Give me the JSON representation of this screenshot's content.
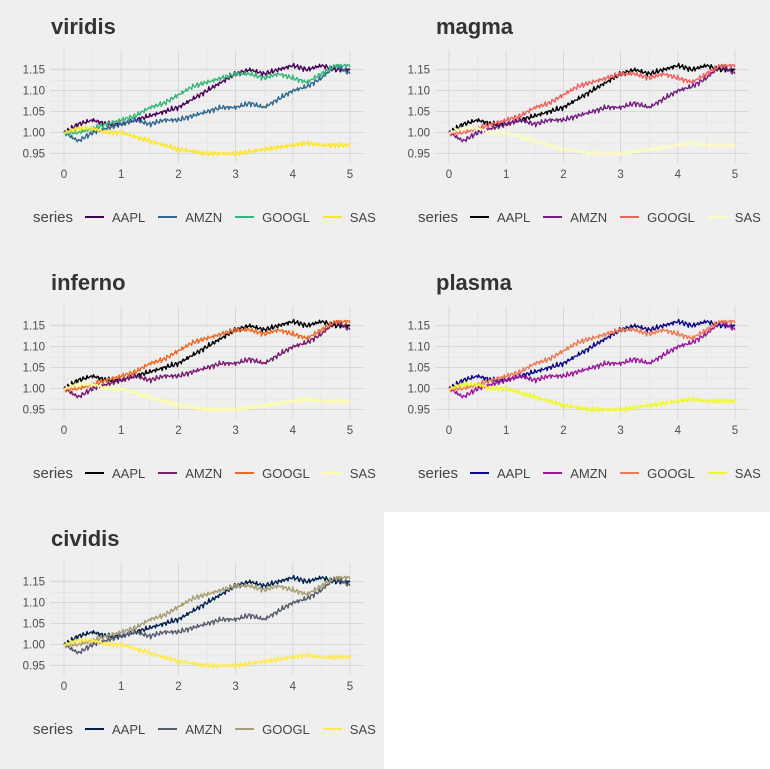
{
  "legend_title": "series",
  "series_names": [
    "AAPL",
    "AMZN",
    "GOOGL",
    "SAS"
  ],
  "palettes": {
    "viridis": [
      "#440154",
      "#31688e",
      "#35b779",
      "#fde725"
    ],
    "magma": [
      "#000004",
      "#721f81",
      "#f1605d",
      "#fcfdbf"
    ],
    "inferno": [
      "#000004",
      "#781c6d",
      "#ed6925",
      "#fcffa4"
    ],
    "plasma": [
      "#0d0887",
      "#9c179e",
      "#ed7953",
      "#f0f921"
    ],
    "cividis": [
      "#00204d",
      "#575c6d",
      "#a69d75",
      "#ffea46"
    ]
  },
  "panels": [
    {
      "title": "viridis",
      "palette": "viridis"
    },
    {
      "title": "magma",
      "palette": "magma"
    },
    {
      "title": "inferno",
      "palette": "inferno"
    },
    {
      "title": "plasma",
      "palette": "plasma"
    },
    {
      "title": "cividis",
      "palette": "cividis"
    }
  ],
  "chart_data": {
    "type": "line",
    "xlim": [
      0,
      5
    ],
    "ylim": [
      0.93,
      1.185
    ],
    "x_ticks": [
      0,
      1,
      2,
      3,
      4,
      5
    ],
    "x_tick_labels": [
      "0",
      "1",
      "2",
      "3",
      "4",
      "5"
    ],
    "y_ticks": [
      0.95,
      1.0,
      1.05,
      1.1,
      1.15
    ],
    "y_tick_labels": [
      "0.95",
      "1.00",
      "1.05",
      "1.10",
      "1.15"
    ],
    "x": [
      0,
      0.25,
      0.5,
      0.75,
      1.0,
      1.25,
      1.5,
      1.75,
      2.0,
      2.25,
      2.5,
      2.75,
      3.0,
      3.25,
      3.5,
      3.75,
      4.0,
      4.25,
      4.5,
      4.75,
      5.0
    ],
    "series": [
      {
        "name": "AAPL",
        "values": [
          1.0,
          1.02,
          1.03,
          1.02,
          1.02,
          1.03,
          1.04,
          1.05,
          1.06,
          1.08,
          1.1,
          1.12,
          1.14,
          1.15,
          1.14,
          1.15,
          1.16,
          1.15,
          1.16,
          1.15,
          1.15
        ]
      },
      {
        "name": "AMZN",
        "values": [
          1.0,
          0.98,
          1.0,
          1.01,
          1.02,
          1.03,
          1.02,
          1.03,
          1.03,
          1.04,
          1.05,
          1.06,
          1.06,
          1.07,
          1.06,
          1.08,
          1.1,
          1.11,
          1.13,
          1.16,
          1.14
        ]
      },
      {
        "name": "GOOGL",
        "values": [
          1.0,
          1.0,
          1.01,
          1.02,
          1.03,
          1.04,
          1.06,
          1.07,
          1.09,
          1.11,
          1.12,
          1.13,
          1.14,
          1.14,
          1.13,
          1.14,
          1.13,
          1.12,
          1.14,
          1.16,
          1.16
        ]
      },
      {
        "name": "SAS",
        "values": [
          1.0,
          1.01,
          1.01,
          1.0,
          1.0,
          0.99,
          0.98,
          0.97,
          0.96,
          0.955,
          0.95,
          0.95,
          0.95,
          0.955,
          0.96,
          0.965,
          0.97,
          0.975,
          0.97,
          0.97,
          0.97
        ]
      }
    ]
  }
}
